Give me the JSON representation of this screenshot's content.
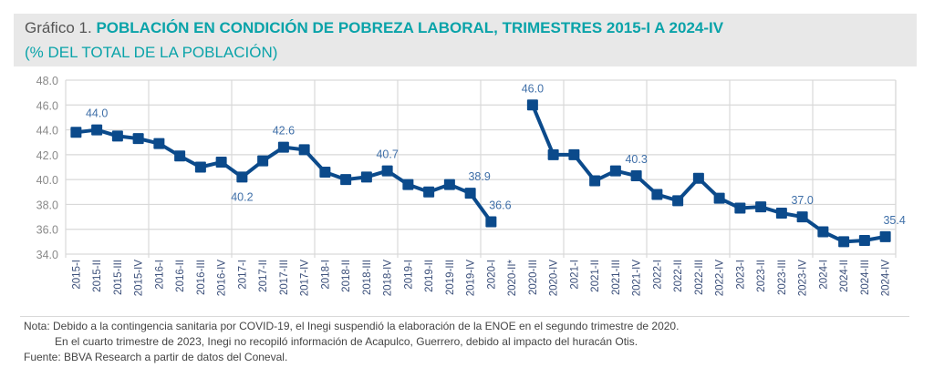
{
  "header": {
    "prefix": "Gráfico 1.",
    "title": "POBLACIÓN EN CONDICIÓN DE POBREZA LABORAL, TRIMESTRES 2015-I A 2024-IV",
    "subtitle": "(% DEL TOTAL DE LA POBLACIÓN)"
  },
  "footer": {
    "note_line1": "Nota: Debido a la contingencia sanitaria por COVID-19, el Inegi suspendió la elaboración de la ENOE en el segundo trimestre de 2020.",
    "note_line2": "En el cuarto trimestre de 2023, Inegi no recopiló información de Acapulco, Guerrero, debido al impacto del huracán Otis.",
    "source": "Fuente: BBVA Research a partir de datos del Coneval."
  },
  "colors": {
    "accent": "#0aa3a9",
    "series": "#0b4a8b",
    "label": "#3f6fa8",
    "grid": "#d9d9d9",
    "band": "#e8e8e8"
  },
  "chart_data": {
    "type": "line",
    "title": "POBLACIÓN EN CONDICIÓN DE POBREZA LABORAL, TRIMESTRES 2015-I A 2024-IV",
    "subtitle": "(% DEL TOTAL DE LA POBLACIÓN)",
    "xlabel": "",
    "ylabel": "",
    "ylim": [
      34,
      48
    ],
    "yticks": [
      34,
      36,
      38,
      40,
      42,
      44,
      46,
      48
    ],
    "ytick_labels": [
      "34.0",
      "36.0",
      "38.0",
      "40.0",
      "42.0",
      "44.0",
      "46.0",
      "48.0"
    ],
    "grid": true,
    "legend": "none",
    "categories": [
      "2015-I",
      "2015-II",
      "2015-III",
      "2015-IV",
      "2016-I",
      "2016-II",
      "2016-III",
      "2016-IV",
      "2017-I",
      "2017-II",
      "2017-III",
      "2017-IV",
      "2018-I",
      "2018-II",
      "2018-III",
      "2018-IV",
      "2019-I",
      "2019-II",
      "2019-III",
      "2019-IV",
      "2020-I",
      "2020-II*",
      "2020-III",
      "2020-IV",
      "2021-I",
      "2021-II",
      "2021-III",
      "2021-IV",
      "2022-I",
      "2022-II",
      "2022-III",
      "2022-IV",
      "2023-I",
      "2023-II",
      "2023-III",
      "2023-IV",
      "2024-I",
      "2024-II",
      "2024-III",
      "2024-IV"
    ],
    "series": [
      {
        "name": "Pobreza laboral",
        "values": [
          43.8,
          44.0,
          43.5,
          43.3,
          42.9,
          41.9,
          41.0,
          41.4,
          40.2,
          41.5,
          42.6,
          42.4,
          40.6,
          40.0,
          40.2,
          40.7,
          39.6,
          39.0,
          39.6,
          38.9,
          36.6,
          null,
          46.0,
          42.0,
          42.0,
          39.9,
          40.7,
          40.3,
          38.8,
          38.3,
          40.1,
          38.5,
          37.7,
          37.8,
          37.3,
          37.0,
          35.8,
          35.0,
          35.1,
          35.4
        ]
      }
    ],
    "annotations": [
      {
        "category": "2015-II",
        "text": "44.0",
        "position": "above"
      },
      {
        "category": "2017-I",
        "text": "40.2",
        "position": "below"
      },
      {
        "category": "2017-III",
        "text": "42.6",
        "position": "above"
      },
      {
        "category": "2018-IV",
        "text": "40.7",
        "position": "above"
      },
      {
        "category": "2019-IV",
        "text": "38.9",
        "position": "above"
      },
      {
        "category": "2020-I",
        "text": "36.6",
        "position": "above"
      },
      {
        "category": "2020-III",
        "text": "46.0",
        "position": "above"
      },
      {
        "category": "2021-IV",
        "text": "40.3",
        "position": "above"
      },
      {
        "category": "2023-IV",
        "text": "37.0",
        "position": "above"
      },
      {
        "category": "2024-IV",
        "text": "35.4",
        "position": "above"
      }
    ]
  }
}
